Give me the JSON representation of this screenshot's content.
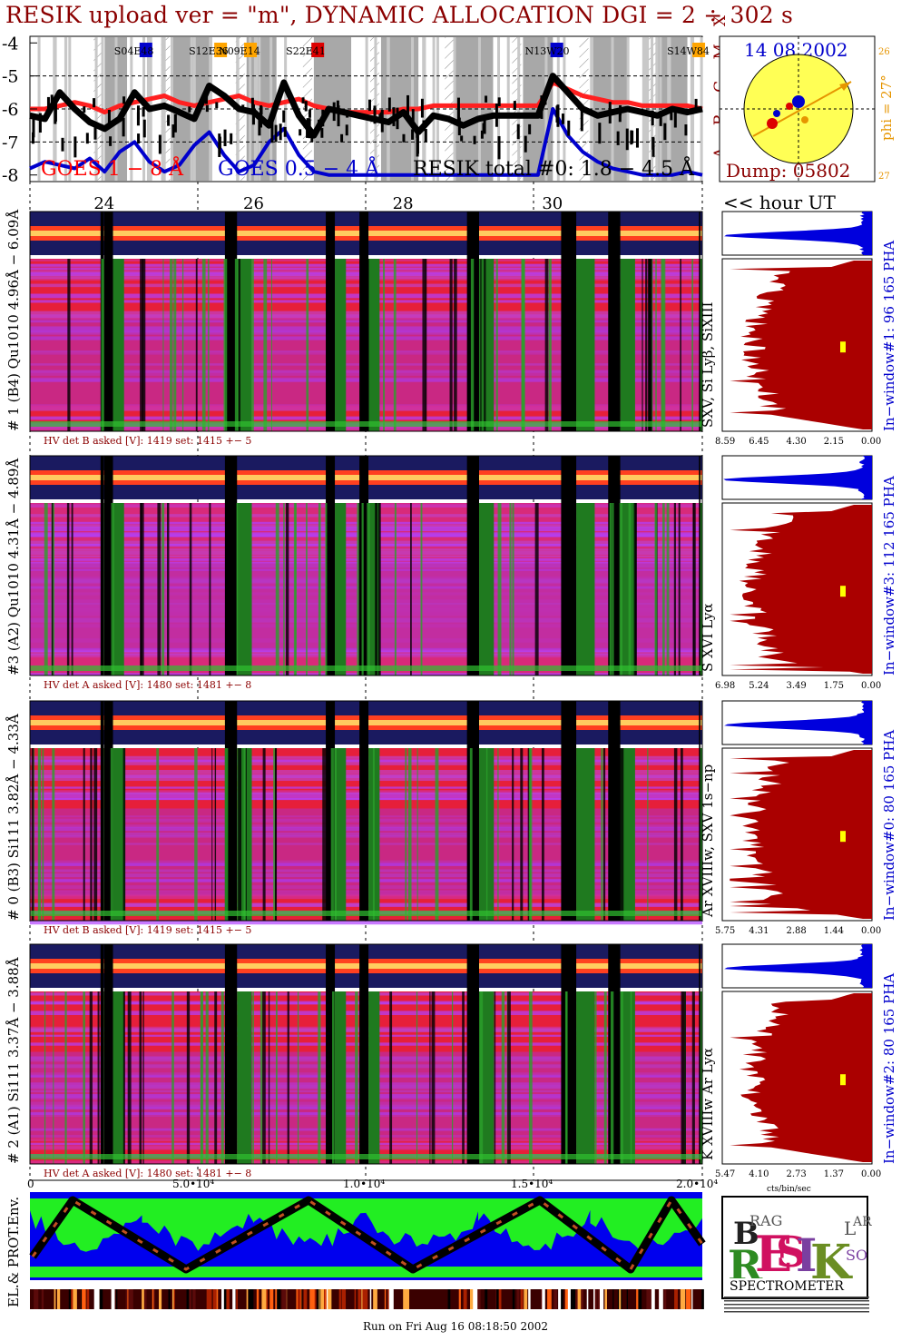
{
  "title": "RESIK upload ver = \"m\", DYNAMIC ALLOCATION  DGI =   2 ÷ 302 s",
  "footer": "Run on Fri Aug 16 08:18:50 2002",
  "top_panel": {
    "y_ticks": [
      "-4",
      "-5",
      "-6",
      "-7",
      "-8"
    ],
    "class_labels": [
      "X",
      "M",
      "C",
      "B",
      "A"
    ],
    "legend_goes_long": "GOES 1 − 8 Å",
    "legend_goes_short": "GOES 0.5 − 4 Å",
    "legend_resik": "RESIK total #0: 1.8 − 4.5 Å",
    "flare_labels": [
      "S04E48",
      "S12E36",
      "N09E14",
      "S22E41",
      "N13W20",
      "S14W84"
    ],
    "flare_colors": [
      "#0000cc",
      "#ffa500",
      "#ffa500",
      "#dd0000",
      "#0000cc",
      "#ffa500"
    ]
  },
  "sun_panel": {
    "date": "14 08 2002",
    "phi": "phi = 27°",
    "tick_top": "26",
    "tick_bottom": "27",
    "dump": "Dump: 05802"
  },
  "time_axis": {
    "hour_ticks": [
      "24",
      "26",
      "28",
      "30"
    ],
    "hour_label": "<< hour UT",
    "bottom_ticks": [
      "0",
      "5.0•10⁴",
      "1.0•10⁴",
      "1.5•10⁴",
      "2.0•10⁴"
    ]
  },
  "detectors": [
    {
      "label": "# 1 (B4) Qu1010 4.96Å − 6.09Å",
      "hv": "HV det B asked [V]:  1419 set:  1415  +−     5",
      "line_label": "SXV, Si Lyβ, SiXIII",
      "window_label": "In−window#1:  96 165  PHA",
      "x_ticks": [
        "8.59",
        "6.45",
        "4.30",
        "2.15",
        "0.00"
      ]
    },
    {
      "label": "#3 (A2) Qu1010  4.31Å − 4.89Å",
      "hv": "HV det A asked [V]:  1480 set:  1481  +−     8",
      "line_label": "S XVI Lyα",
      "window_label": "In−window#3:  112 165  PHA",
      "x_ticks": [
        "6.98",
        "5.24",
        "3.49",
        "1.75",
        "0.00"
      ]
    },
    {
      "label": "# 0 (B3) Si111  3.82Å − 4.33Å",
      "hv": "HV det B asked [V]:  1419 set:  1415  +−     5",
      "line_label": "Ar XVIIIw, SXV 1s−np",
      "window_label": "In−window#0:   80 165  PHA",
      "x_ticks": [
        "5.75",
        "4.31",
        "2.88",
        "1.44",
        "0.00"
      ]
    },
    {
      "label": "# 2 (A1) Si111  3.37Å − 3.88Å",
      "hv": "HV det A asked [V]:  1480 set:  1481  +−     8",
      "line_label": "K XVIIIw  Ar Lyα",
      "window_label": "In−window#2:   80 165  PHA",
      "x_ticks": [
        "5.47",
        "4.10",
        "2.73",
        "1.37",
        "0.00"
      ]
    }
  ],
  "pha_xlabel": "cts/bin/sec",
  "env_label": "EL.& PROT.Env.",
  "logo": {
    "letters": "RESIK",
    "sub": "BRAG  SOLAR",
    "spectrometer": "SPECTROMETER"
  },
  "chart_data": [
    {
      "type": "line",
      "title": "RESIK upload ver = \"m\", DYNAMIC ALLOCATION  DGI =   2 ÷ 302 s",
      "xlabel": "",
      "ylabel": "",
      "ylim": [
        -8.2,
        -3.8
      ],
      "x": [
        23.0,
        23.2,
        23.4,
        23.6,
        23.8,
        24.0,
        24.2,
        24.4,
        24.6,
        24.8,
        25.0,
        25.2,
        25.4,
        25.6,
        25.8,
        26.0,
        26.2,
        26.4,
        26.6,
        26.8,
        27.0,
        27.2,
        27.4,
        27.6,
        27.8,
        28.0,
        28.2,
        28.4,
        28.6,
        28.8,
        29.0,
        29.2,
        29.4,
        29.6,
        29.8,
        30.0,
        30.2,
        30.4,
        30.6,
        30.8,
        31.0,
        31.2,
        31.4,
        31.6,
        31.8,
        32.0
      ],
      "series": [
        {
          "name": "GOES 1 − 8 Å",
          "color": "#ff2020",
          "values": [
            -6.0,
            -6.0,
            -5.9,
            -5.8,
            -5.9,
            -6.1,
            -5.9,
            -5.8,
            -5.7,
            -5.6,
            -5.8,
            -5.9,
            -5.8,
            -5.7,
            -5.6,
            -5.8,
            -5.9,
            -5.8,
            -5.7,
            -5.9,
            -6.0,
            -6.1,
            -6.1,
            -6.1,
            -6.1,
            -6.0,
            -6.0,
            -5.9,
            -5.9,
            -5.9,
            -5.9,
            -5.9,
            -5.9,
            -5.9,
            -5.9,
            -5.2,
            -5.4,
            -5.6,
            -5.7,
            -5.8,
            -5.8,
            -5.9,
            -5.9,
            -5.9,
            -5.9,
            -6.0
          ]
        },
        {
          "name": "GOES 0.5 − 4 Å",
          "color": "#0000cc",
          "values": [
            -7.8,
            -7.6,
            -7.7,
            -7.8,
            -7.5,
            -7.9,
            -7.3,
            -7.0,
            -7.6,
            -7.9,
            -7.7,
            -7.1,
            -6.7,
            -7.4,
            -7.9,
            -7.7,
            -7.0,
            -6.6,
            -7.4,
            -7.9,
            -8.0,
            -8.0,
            -8.0,
            -8.0,
            -8.0,
            -8.0,
            -8.0,
            -8.0,
            -8.0,
            -8.0,
            -8.0,
            -8.0,
            -8.0,
            -8.0,
            -8.0,
            -6.0,
            -6.8,
            -7.3,
            -7.6,
            -7.8,
            -7.9,
            -8.0,
            -8.0,
            -8.0,
            -7.9,
            -8.0
          ]
        },
        {
          "name": "RESIK total #0: 1.8 − 4.5 Å",
          "color": "#000000",
          "values": [
            -6.2,
            -6.3,
            -5.5,
            -6.0,
            -6.4,
            -6.6,
            -6.3,
            -5.5,
            -6.0,
            -5.9,
            -6.1,
            -6.3,
            -5.3,
            -5.6,
            -6.0,
            -6.1,
            -6.5,
            -5.2,
            -6.2,
            -6.8,
            -6.0,
            -6.1,
            -6.2,
            -6.3,
            -6.4,
            -6.1,
            -6.7,
            -6.2,
            -6.3,
            -6.5,
            -6.3,
            -6.2,
            -6.2,
            -6.2,
            -6.2,
            -5.0,
            -5.5,
            -6.0,
            -6.2,
            -6.1,
            -6.0,
            -6.1,
            -6.2,
            -6.0,
            -6.1,
            -6.0
          ]
        }
      ]
    }
  ],
  "colors": {
    "title": "#8b0000",
    "hist_fill": "#aa0000",
    "pha_fill": "#0000dd",
    "marker": "#ffff00",
    "env_blue": "#0000ee",
    "env_green": "#22ee22"
  }
}
